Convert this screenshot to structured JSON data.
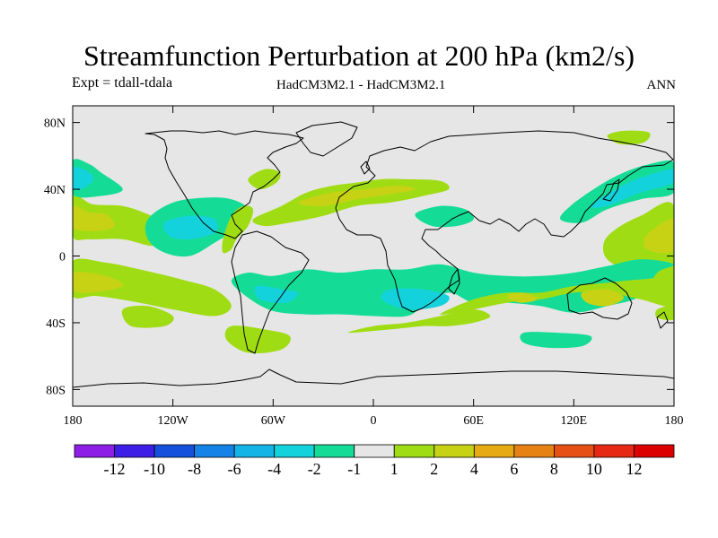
{
  "chart_data": {
    "type": "heatmap",
    "title": "Streamfunction Perturbation at 200 hPa (km2/s)",
    "subtitle_left": "Expt = tdall-tdala",
    "subtitle_center": "HadCM3M2.1 - HadCM3M2.1",
    "subtitle_right": "ANN",
    "x_ticks": [
      {
        "value": -180,
        "label": "180"
      },
      {
        "value": -120,
        "label": "120W"
      },
      {
        "value": -60,
        "label": "60W"
      },
      {
        "value": 0,
        "label": "0"
      },
      {
        "value": 60,
        "label": "60E"
      },
      {
        "value": 120,
        "label": "120E"
      },
      {
        "value": 180,
        "label": "180"
      }
    ],
    "y_ticks": [
      {
        "value": 80,
        "label": "80N"
      },
      {
        "value": 40,
        "label": "40N"
      },
      {
        "value": 0,
        "label": "0"
      },
      {
        "value": -40,
        "label": "40S"
      },
      {
        "value": -80,
        "label": "80S"
      }
    ],
    "xlim": [
      -180,
      180
    ],
    "ylim": [
      -90,
      90
    ],
    "colorbar": {
      "labels": [
        "-12",
        "-10",
        "-8",
        "-6",
        "-4",
        "-2",
        "-1",
        "1",
        "2",
        "4",
        "6",
        "8",
        "10",
        "12"
      ],
      "colors": [
        "#8c1ee6",
        "#3c1ee6",
        "#1450dc",
        "#1482e6",
        "#14b4e6",
        "#14d2dc",
        "#14dc96",
        "#e6e6e6",
        "#a0dc14",
        "#c8d214",
        "#e6aa14",
        "#e68214",
        "#e65014",
        "#e62814",
        "#dc0000"
      ]
    },
    "contour_regions": [
      {
        "name": "n-pacific-ne-positive-lobe",
        "level": "2",
        "color": "#a0dc14",
        "points": [
          [
            -180,
            36
          ],
          [
            -168,
            31
          ],
          [
            -150,
            30
          ],
          [
            -135,
            25
          ],
          [
            -122,
            18
          ],
          [
            -120,
            10
          ],
          [
            -132,
            6
          ],
          [
            -150,
            10
          ],
          [
            -170,
            10
          ],
          [
            -180,
            12
          ]
        ]
      },
      {
        "name": "n-pacific-ne-positive-core",
        "level": "4",
        "color": "#c8d214",
        "points": [
          [
            -180,
            30
          ],
          [
            -170,
            26
          ],
          [
            -160,
            25
          ],
          [
            -155,
            18
          ],
          [
            -165,
            15
          ],
          [
            -180,
            17
          ]
        ]
      },
      {
        "name": "n-pacific-dateline-negative",
        "level": "-1",
        "color": "#14dc96",
        "points": [
          [
            -180,
            57
          ],
          [
            -170,
            55
          ],
          [
            -163,
            50
          ],
          [
            -150,
            40
          ],
          [
            -163,
            36
          ],
          [
            -180,
            37
          ]
        ]
      },
      {
        "name": "n-pacific-dateline-negative-core",
        "level": "-2",
        "color": "#14d2dc",
        "points": [
          [
            -180,
            53
          ],
          [
            -170,
            50
          ],
          [
            -168,
            45
          ],
          [
            -175,
            40
          ],
          [
            -180,
            41
          ]
        ]
      },
      {
        "name": "north-america-negative",
        "level": "-1",
        "color": "#14dc96",
        "points": [
          [
            -135,
            22
          ],
          [
            -120,
            32
          ],
          [
            -100,
            35
          ],
          [
            -85,
            34
          ],
          [
            -75,
            28
          ],
          [
            -80,
            18
          ],
          [
            -95,
            8
          ],
          [
            -110,
            0
          ],
          [
            -125,
            2
          ],
          [
            -135,
            10
          ]
        ]
      },
      {
        "name": "north-america-negative-core",
        "level": "-2",
        "color": "#14d2dc",
        "points": [
          [
            -125,
            20
          ],
          [
            -110,
            24
          ],
          [
            -95,
            22
          ],
          [
            -95,
            14
          ],
          [
            -110,
            10
          ],
          [
            -122,
            12
          ]
        ]
      },
      {
        "name": "caribbean-positive",
        "level": "2",
        "color": "#a0dc14",
        "points": [
          [
            -85,
            24
          ],
          [
            -78,
            30
          ],
          [
            -72,
            28
          ],
          [
            -75,
            18
          ],
          [
            -82,
            10
          ],
          [
            -85,
            4
          ],
          [
            -90,
            2
          ],
          [
            -90,
            10
          ]
        ]
      },
      {
        "name": "north-atlantic-positive",
        "level": "2",
        "color": "#a0dc14",
        "points": [
          [
            -72,
            22
          ],
          [
            -55,
            30
          ],
          [
            -40,
            38
          ],
          [
            -25,
            42
          ],
          [
            -10,
            44
          ],
          [
            5,
            46
          ],
          [
            20,
            46
          ],
          [
            40,
            45
          ],
          [
            45,
            40
          ],
          [
            30,
            36
          ],
          [
            10,
            32
          ],
          [
            -10,
            30
          ],
          [
            -30,
            24
          ],
          [
            -50,
            20
          ],
          [
            -65,
            18
          ]
        ]
      },
      {
        "name": "north-atlantic-positive-core",
        "level": "4",
        "color": "#c8d214",
        "points": [
          [
            -45,
            32
          ],
          [
            -25,
            38
          ],
          [
            -5,
            40
          ],
          [
            15,
            42
          ],
          [
            25,
            40
          ],
          [
            10,
            37
          ],
          [
            -10,
            34
          ],
          [
            -30,
            30
          ]
        ]
      },
      {
        "name": "east-coast-positive",
        "level": "2",
        "color": "#a0dc14",
        "points": [
          [
            -75,
            46
          ],
          [
            -65,
            52
          ],
          [
            -56,
            50
          ],
          [
            -58,
            44
          ],
          [
            -68,
            40
          ]
        ]
      },
      {
        "name": "middle-east-negative",
        "level": "-1",
        "color": "#14dc96",
        "points": [
          [
            25,
            25
          ],
          [
            40,
            30
          ],
          [
            55,
            28
          ],
          [
            60,
            22
          ],
          [
            50,
            18
          ],
          [
            35,
            18
          ]
        ]
      },
      {
        "name": "arctic-siberia-positive",
        "level": "2",
        "color": "#a0dc14",
        "points": [
          [
            140,
            72
          ],
          [
            150,
            75
          ],
          [
            165,
            74
          ],
          [
            162,
            68
          ],
          [
            148,
            67
          ]
        ]
      },
      {
        "name": "nw-pacific-negative",
        "level": "-1",
        "color": "#14dc96",
        "points": [
          [
            180,
            56
          ],
          [
            165,
            55
          ],
          [
            150,
            50
          ],
          [
            135,
            42
          ],
          [
            118,
            30
          ],
          [
            112,
            22
          ],
          [
            125,
            20
          ],
          [
            140,
            28
          ],
          [
            160,
            34
          ],
          [
            180,
            38
          ]
        ]
      },
      {
        "name": "nw-pacific-negative-core",
        "level": "-2",
        "color": "#14d2dc",
        "points": [
          [
            180,
            52
          ],
          [
            160,
            47
          ],
          [
            145,
            40
          ],
          [
            130,
            30
          ],
          [
            140,
            30
          ],
          [
            160,
            38
          ],
          [
            180,
            44
          ]
        ]
      },
      {
        "name": "w-pacific-positive",
        "level": "2",
        "color": "#a0dc14",
        "points": [
          [
            180,
            30
          ],
          [
            160,
            24
          ],
          [
            145,
            16
          ],
          [
            138,
            8
          ],
          [
            140,
            -2
          ],
          [
            155,
            -10
          ],
          [
            172,
            -16
          ],
          [
            180,
            -18
          ]
        ]
      },
      {
        "name": "w-pacific-positive-core",
        "level": "4",
        "color": "#c8d214",
        "points": [
          [
            180,
            22
          ],
          [
            165,
            14
          ],
          [
            162,
            6
          ],
          [
            170,
            2
          ],
          [
            180,
            4
          ]
        ]
      },
      {
        "name": "south-pacific-negative-band",
        "level": "-1",
        "color": "#14dc96",
        "points": [
          [
            180,
            -5
          ],
          [
            170,
            -10
          ],
          [
            160,
            -24
          ],
          [
            140,
            -30
          ],
          [
            120,
            -34
          ],
          [
            100,
            -30
          ],
          [
            80,
            -28
          ],
          [
            60,
            -28
          ],
          [
            45,
            -22
          ],
          [
            30,
            -30
          ],
          [
            20,
            -36
          ],
          [
            0,
            -36
          ],
          [
            -20,
            -35
          ],
          [
            -40,
            -35
          ],
          [
            -60,
            -33
          ],
          [
            -75,
            -25
          ],
          [
            -85,
            -15
          ],
          [
            -75,
            -10
          ],
          [
            -60,
            -12
          ],
          [
            -40,
            -8
          ],
          [
            -20,
            -10
          ],
          [
            0,
            -8
          ],
          [
            20,
            -8
          ],
          [
            40,
            -5
          ],
          [
            60,
            -10
          ],
          [
            80,
            -12
          ],
          [
            100,
            -12
          ],
          [
            120,
            -10
          ],
          [
            140,
            -6
          ],
          [
            160,
            -2
          ]
        ]
      },
      {
        "name": "south-atlantic-negative-core",
        "level": "-2",
        "color": "#14d2dc",
        "points": [
          [
            10,
            -20
          ],
          [
            30,
            -20
          ],
          [
            45,
            -24
          ],
          [
            40,
            -30
          ],
          [
            20,
            -32
          ],
          [
            5,
            -26
          ]
        ]
      },
      {
        "name": "south-america-negative-core",
        "level": "-2",
        "color": "#14d2dc",
        "points": [
          [
            -70,
            -18
          ],
          [
            -55,
            -20
          ],
          [
            -45,
            -22
          ],
          [
            -52,
            -28
          ],
          [
            -68,
            -26
          ]
        ]
      },
      {
        "name": "south-pacific-positive",
        "level": "2",
        "color": "#a0dc14",
        "points": [
          [
            -180,
            -3
          ],
          [
            -160,
            -4
          ],
          [
            -140,
            -8
          ],
          [
            -115,
            -14
          ],
          [
            -95,
            -20
          ],
          [
            -85,
            -30
          ],
          [
            -95,
            -36
          ],
          [
            -120,
            -32
          ],
          [
            -140,
            -28
          ],
          [
            -165,
            -24
          ],
          [
            -180,
            -24
          ]
        ]
      },
      {
        "name": "south-pacific-positive-core",
        "level": "4",
        "color": "#c8d214",
        "points": [
          [
            -180,
            -10
          ],
          [
            -160,
            -12
          ],
          [
            -150,
            -18
          ],
          [
            -170,
            -22
          ],
          [
            -180,
            -20
          ]
        ]
      },
      {
        "name": "south-pacific-positive-2",
        "level": "2",
        "color": "#a0dc14",
        "points": [
          [
            -150,
            -32
          ],
          [
            -135,
            -30
          ],
          [
            -120,
            -36
          ],
          [
            -125,
            -42
          ],
          [
            -145,
            -42
          ]
        ]
      },
      {
        "name": "drake-positive",
        "level": "2",
        "color": "#a0dc14",
        "points": [
          [
            -85,
            -42
          ],
          [
            -65,
            -44
          ],
          [
            -50,
            -48
          ],
          [
            -55,
            -56
          ],
          [
            -75,
            -58
          ],
          [
            -88,
            -50
          ]
        ]
      },
      {
        "name": "s-atlantic-positive",
        "level": "2",
        "color": "#a0dc14",
        "points": [
          [
            -15,
            -46
          ],
          [
            10,
            -44
          ],
          [
            30,
            -42
          ],
          [
            45,
            -42
          ],
          [
            60,
            -40
          ],
          [
            70,
            -36
          ],
          [
            60,
            -32
          ],
          [
            40,
            -36
          ],
          [
            20,
            -40
          ],
          [
            0,
            -42
          ]
        ]
      },
      {
        "name": "indian-ocean-positive",
        "level": "2",
        "color": "#a0dc14",
        "points": [
          [
            40,
            -35
          ],
          [
            60,
            -32
          ],
          [
            80,
            -28
          ],
          [
            100,
            -26
          ],
          [
            120,
            -22
          ],
          [
            140,
            -22
          ],
          [
            160,
            -26
          ],
          [
            180,
            -30
          ],
          [
            180,
            -14
          ],
          [
            160,
            -14
          ],
          [
            140,
            -16
          ],
          [
            120,
            -18
          ],
          [
            100,
            -22
          ],
          [
            80,
            -22
          ],
          [
            60,
            -26
          ]
        ]
      },
      {
        "name": "indian-ocean-positive-core",
        "level": "4",
        "color": "#c8d214",
        "points": [
          [
            80,
            -24
          ],
          [
            90,
            -22
          ],
          [
            98,
            -26
          ],
          [
            88,
            -28
          ]
        ]
      },
      {
        "name": "australia-positive-core",
        "level": "4",
        "color": "#c8d214",
        "points": [
          [
            125,
            -22
          ],
          [
            140,
            -20
          ],
          [
            150,
            -25
          ],
          [
            140,
            -30
          ],
          [
            128,
            -28
          ]
        ]
      },
      {
        "name": "se-pacific-positive",
        "level": "2",
        "color": "#a0dc14",
        "points": [
          [
            170,
            -32
          ],
          [
            180,
            -30
          ],
          [
            180,
            -38
          ],
          [
            170,
            -37
          ]
        ]
      },
      {
        "name": "southern-ocean-negative",
        "level": "-1",
        "color": "#14dc96",
        "points": [
          [
            90,
            -46
          ],
          [
            110,
            -46
          ],
          [
            130,
            -48
          ],
          [
            125,
            -54
          ],
          [
            105,
            -55
          ],
          [
            90,
            -52
          ]
        ]
      }
    ]
  }
}
